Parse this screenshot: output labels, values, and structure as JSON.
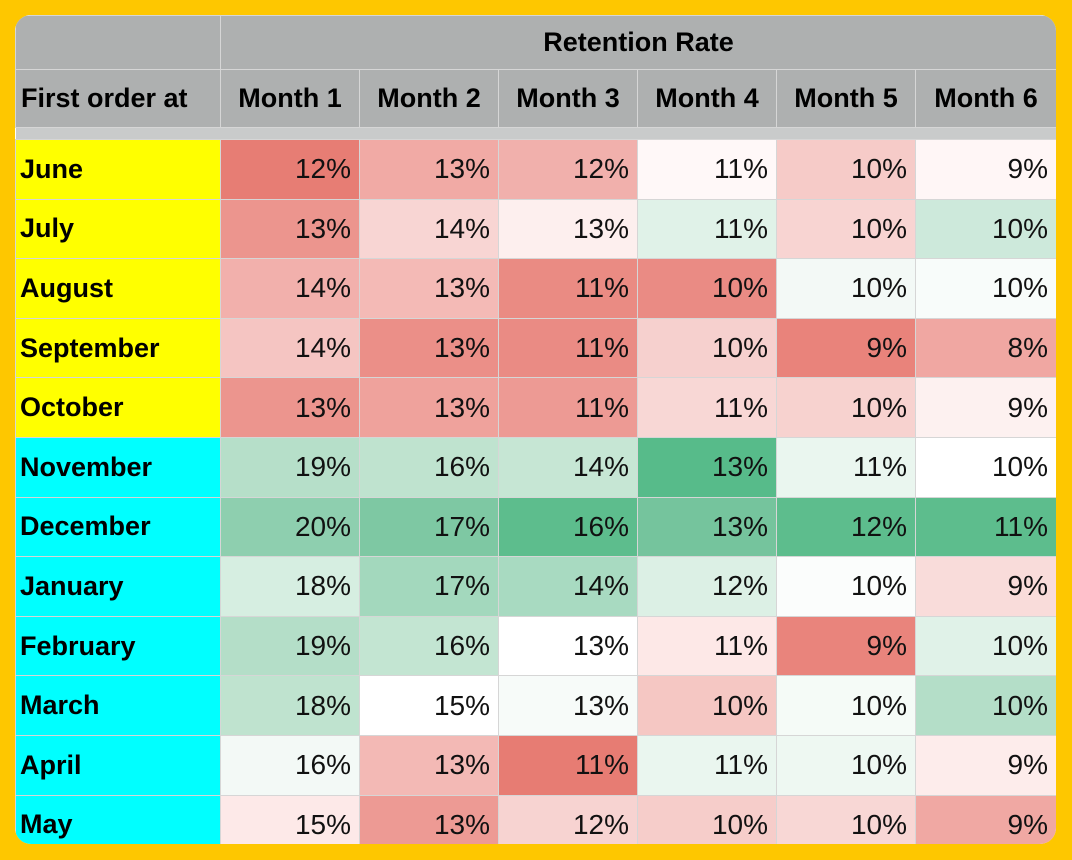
{
  "colors": {
    "frame": "#fec700",
    "header_bg": "#aeb0b0",
    "group_summer_fall": "#ffff00",
    "group_winter_spring": "#00ffff",
    "high_green": "#57bb8a",
    "low_red": "#e67c73"
  },
  "chart_data": {
    "type": "table",
    "title": "Retention Rate",
    "row_header_label": "First order at",
    "columns": [
      "Month 1",
      "Month 2",
      "Month 3",
      "Month 4",
      "Month 5",
      "Month 6"
    ],
    "rows": [
      {
        "label": "June",
        "group_color": "#ffff00",
        "values": [
          12,
          13,
          12,
          11,
          10,
          9
        ],
        "colors": [
          "#e77d74",
          "#f1aaa5",
          "#f1b0ac",
          "#fff8f8",
          "#f6cbc8",
          "#fff6f6"
        ]
      },
      {
        "label": "July",
        "group_color": "#ffff00",
        "values": [
          13,
          14,
          13,
          11,
          10,
          10
        ],
        "colors": [
          "#ec958e",
          "#f8d5d3",
          "#fdefee",
          "#e0f2e8",
          "#f8d4d2",
          "#cde9db"
        ]
      },
      {
        "label": "August",
        "group_color": "#ffff00",
        "values": [
          14,
          13,
          11,
          10,
          10,
          10
        ],
        "colors": [
          "#f2b0ac",
          "#f4bab6",
          "#ea8b83",
          "#ea8b84",
          "#f3f9f6",
          "#f8fcfa"
        ]
      },
      {
        "label": "September",
        "group_color": "#ffff00",
        "values": [
          14,
          13,
          11,
          10,
          9,
          8
        ],
        "colors": [
          "#f5c5c2",
          "#eb8f88",
          "#ea8b84",
          "#f6d0ce",
          "#e9837b",
          "#f0a7a2"
        ]
      },
      {
        "label": "October",
        "group_color": "#ffff00",
        "values": [
          13,
          13,
          11,
          11,
          10,
          9
        ],
        "colors": [
          "#ec958e",
          "#efa29c",
          "#ed9a94",
          "#f8d7d5",
          "#f7d2cf",
          "#fdf1f0"
        ]
      },
      {
        "label": "November",
        "group_color": "#00ffff",
        "values": [
          19,
          16,
          14,
          13,
          11,
          10
        ],
        "colors": [
          "#b6dfc9",
          "#bfe3cf",
          "#c6e6d4",
          "#57bb8a",
          "#eaf6ef",
          "#ffffff"
        ]
      },
      {
        "label": "December",
        "group_color": "#00ffff",
        "values": [
          20,
          17,
          16,
          13,
          12,
          11
        ],
        "colors": [
          "#8ecfaf",
          "#7ec8a3",
          "#5dbd8d",
          "#75c49d",
          "#5dbd8d",
          "#5dbd8d"
        ]
      },
      {
        "label": "January",
        "group_color": "#00ffff",
        "values": [
          18,
          17,
          14,
          12,
          10,
          9
        ],
        "colors": [
          "#d6eee1",
          "#a3d8bd",
          "#a8dac1",
          "#dcf0e5",
          "#fbfdfc",
          "#f9dcda"
        ]
      },
      {
        "label": "February",
        "group_color": "#00ffff",
        "values": [
          19,
          16,
          13,
          11,
          9,
          10
        ],
        "colors": [
          "#b4dec8",
          "#c3e5d2",
          "#ffffff",
          "#fde8e7",
          "#e9847c",
          "#e0f2e8"
        ]
      },
      {
        "label": "March",
        "group_color": "#00ffff",
        "values": [
          18,
          15,
          13,
          10,
          10,
          10
        ],
        "colors": [
          "#bfe3cf",
          "#ffffff",
          "#f7fbf9",
          "#f5c7c3",
          "#f5fbf7",
          "#b4dec8"
        ]
      },
      {
        "label": "April",
        "group_color": "#00ffff",
        "values": [
          16,
          13,
          11,
          11,
          10,
          9
        ],
        "colors": [
          "#f3f9f6",
          "#f3b9b5",
          "#e77c73",
          "#eaf6ef",
          "#eef8f2",
          "#fdeceb"
        ]
      },
      {
        "label": "May",
        "group_color": "#00ffff",
        "values": [
          15,
          13,
          12,
          10,
          10,
          9
        ],
        "colors": [
          "#fde9e8",
          "#ed9a94",
          "#f7d3d1",
          "#f6cdca",
          "#f8d7d5",
          "#f0a8a3"
        ]
      }
    ]
  }
}
